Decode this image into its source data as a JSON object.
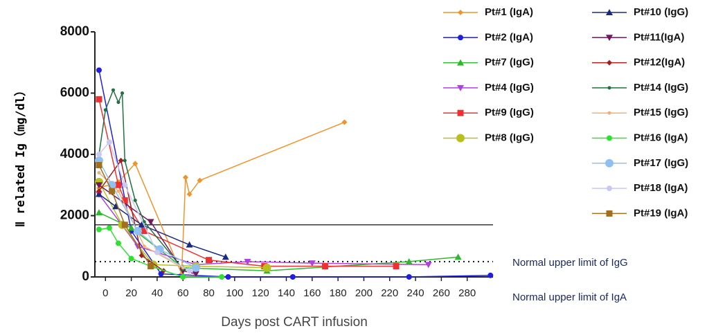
{
  "chart_data": {
    "type": "line",
    "xlabel": "Days post CART infusion",
    "ylabel": "Ⅱ related Ig（mg/dl）",
    "xlim": [
      -8.2,
      300
    ],
    "ylim": [
      0,
      8000
    ],
    "xticks": [
      0,
      20,
      40,
      60,
      80,
      100,
      120,
      140,
      160,
      180,
      200,
      220,
      240,
      260,
      280
    ],
    "yticks": [
      0,
      2000,
      4000,
      6000,
      8000
    ],
    "reference_lines": [
      {
        "value": 1700,
        "style": "solid"
      },
      {
        "value": 500,
        "style": "dotted"
      }
    ],
    "annotations": [
      "Normal upper limit of IgG",
      "Normal upper limit of IgA"
    ],
    "series": [
      {
        "name": "Pt#1 (IgA)",
        "color": "#f0932b",
        "marker": "diamond",
        "x": [
          -5,
          10,
          23,
          59,
          62,
          65,
          73,
          185
        ],
        "values": [
          2900,
          3100,
          3700,
          100,
          3250,
          2700,
          3150,
          5050
        ]
      },
      {
        "name": "Pt#2 (IgA)",
        "color": "#1f1fe0",
        "marker": "circle",
        "x": [
          -5,
          20,
          43,
          95,
          145,
          235,
          298
        ],
        "values": [
          6750,
          1500,
          100,
          0,
          0,
          0,
          50
        ]
      },
      {
        "name": "Pt#7 (IgG)",
        "color": "#2db82d",
        "marker": "triangle",
        "x": [
          -5,
          20,
          60,
          125,
          235,
          273
        ],
        "values": [
          2100,
          1600,
          300,
          200,
          500,
          650
        ]
      },
      {
        "name": "Pt#4 (IgG)",
        "color": "#b040e0",
        "marker": "down",
        "x": [
          -5,
          25,
          70,
          110,
          160,
          250
        ],
        "values": [
          2700,
          1000,
          400,
          500,
          450,
          400
        ]
      },
      {
        "name": "Pt#9 (IgG)",
        "color": "#f03030",
        "marker": "square",
        "x": [
          -5,
          10,
          15,
          30,
          80,
          123,
          170,
          225
        ],
        "values": [
          5800,
          3000,
          2500,
          1500,
          550,
          350,
          350,
          350
        ]
      },
      {
        "name": "Pt#8 (IgG)",
        "color": "#b8c020",
        "marker": "bigcircle",
        "x": [
          -5,
          13,
          37,
          70,
          125
        ],
        "values": [
          3100,
          1700,
          400,
          350,
          300
        ]
      },
      {
        "name": "Pt#10 (IgG)",
        "color": "#1a2a80",
        "marker": "triangle",
        "x": [
          -5,
          8,
          28,
          65,
          93
        ],
        "values": [
          2700,
          2300,
          1700,
          1050,
          650
        ]
      },
      {
        "name": "Pt#11(IgA)",
        "color": "#701860",
        "marker": "down",
        "x": [
          -5,
          35,
          60,
          70
        ],
        "values": [
          3000,
          1800,
          200,
          100
        ]
      },
      {
        "name": "Pt#12(IgA)",
        "color": "#a02020",
        "marker": "diamond",
        "x": [
          -5,
          12,
          28,
          45
        ],
        "values": [
          2800,
          3800,
          700,
          200
        ]
      },
      {
        "name": "Pt#14 (IgG)",
        "color": "#207040",
        "marker": "dot",
        "x": [
          -5,
          0,
          6,
          10,
          13,
          15,
          23,
          30,
          60
        ],
        "values": [
          4000,
          5450,
          6100,
          5700,
          6000,
          3800,
          2500,
          1800,
          250
        ]
      },
      {
        "name": "Pt#15 (IgG)",
        "color": "#f4b070",
        "marker": "dot",
        "x": [
          -5,
          10,
          30,
          60
        ],
        "values": [
          3400,
          2800,
          1000,
          300
        ]
      },
      {
        "name": "Pt#16 (IgA)",
        "color": "#30e030",
        "marker": "circle",
        "x": [
          -5,
          3,
          10,
          20,
          35,
          60,
          90
        ],
        "values": [
          1550,
          1600,
          1100,
          600,
          350,
          0,
          0
        ]
      },
      {
        "name": "Pt#17 (IgG)",
        "color": "#90c0f0",
        "marker": "bigcircle",
        "x": [
          -5,
          5,
          25,
          42,
          70
        ],
        "values": [
          3800,
          3000,
          1500,
          900,
          300
        ]
      },
      {
        "name": "Pt#18 (IgA)",
        "color": "#c8c8f0",
        "marker": "circle",
        "x": [
          -5,
          3,
          15,
          40,
          65
        ],
        "values": [
          4000,
          4400,
          3000,
          800,
          200
        ]
      },
      {
        "name": "Pt#19 (IgA)",
        "color": "#a07020",
        "marker": "square",
        "x": [
          -5,
          5,
          15,
          35
        ],
        "values": [
          3650,
          2800,
          1700,
          350
        ]
      }
    ]
  }
}
